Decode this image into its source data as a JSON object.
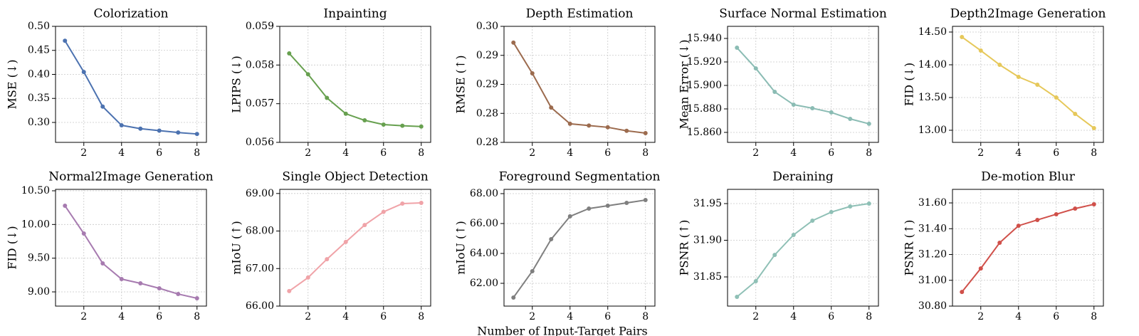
{
  "chart_data": [
    {
      "type": "line",
      "title": "Colorization",
      "ylabel": "MSE (↓)",
      "color": "#4c72b0",
      "x": [
        1,
        2,
        3,
        4,
        5,
        6,
        7,
        8
      ],
      "values": [
        0.47,
        0.405,
        0.333,
        0.294,
        0.287,
        0.283,
        0.279,
        0.276
      ],
      "xlim": [
        0.5,
        8.5
      ],
      "xticks": [
        2,
        4,
        6,
        8
      ],
      "ylim": [
        0.2585,
        0.5
      ],
      "yticks": [
        {
          "value": 0.3,
          "label": "0.30"
        },
        0.35,
        {
          "value": 0.4,
          "label": "0.40"
        },
        0.45,
        {
          "value": 0.5,
          "label": "0.50"
        }
      ],
      "grid": true
    },
    {
      "type": "line",
      "title": "Inpainting",
      "ylabel": "LPIPS (↓)",
      "color": "#67a04f",
      "x": [
        1,
        2,
        3,
        4,
        5,
        6,
        7,
        8
      ],
      "values": [
        0.0583,
        0.05776,
        0.05715,
        0.05674,
        0.05657,
        0.05646,
        0.05643,
        0.05641
      ],
      "xlim": [
        0.5,
        8.5
      ],
      "xticks": [
        2,
        4,
        6,
        8
      ],
      "ylim": [
        0.056,
        0.059
      ],
      "yticks": [
        0.056,
        0.057,
        0.058,
        0.059
      ],
      "grid": true
    },
    {
      "type": "line",
      "title": "Depth Estimation",
      "ylabel": "RMSE (↑)",
      "color": "#9c6b4e",
      "x": [
        1,
        2,
        3,
        4,
        5,
        6,
        7,
        8
      ],
      "values": [
        0.2972,
        0.2919,
        0.286,
        0.2832,
        0.2829,
        0.2826,
        0.282,
        0.2816
      ],
      "xlim": [
        0.5,
        8.5
      ],
      "xticks": [
        2,
        4,
        6,
        8
      ],
      "ylim": [
        0.28,
        0.3
      ],
      "yticks": [
        {
          "value": 0.3,
          "label": "0.30"
        },
        {
          "value": 0.295,
          "label": "0.29"
        },
        {
          "value": 0.29,
          "label": "0.29"
        },
        {
          "value": 0.285,
          "label": "0.28"
        },
        {
          "value": 0.28,
          "label": "0.28"
        }
      ],
      "grid": true
    },
    {
      "type": "line",
      "title": "Surface Normal Estimation",
      "ylabel": "Mean Error (↓)",
      "color": "#8bbcb4",
      "x": [
        1,
        2,
        3,
        4,
        5,
        6,
        7,
        8
      ],
      "values": [
        15.9321,
        15.9145,
        15.8945,
        15.8836,
        15.8806,
        15.877,
        15.8715,
        15.8673
      ],
      "xlim": [
        0.5,
        8.5
      ],
      "xticks": [
        2,
        4,
        6,
        8
      ],
      "ylim": [
        15.8515,
        15.9503
      ],
      "yticks": [
        {
          "value": 15.86,
          "label": "15.860"
        },
        {
          "value": 15.88,
          "label": "15.880"
        },
        {
          "value": 15.9,
          "label": "15.900"
        },
        {
          "value": 15.92,
          "label": "15.920"
        },
        {
          "value": 15.94,
          "label": "15.940"
        }
      ],
      "grid": true
    },
    {
      "type": "line",
      "title": "Depth2Image Generation",
      "ylabel": "FID (↓)",
      "color": "#e6c85a",
      "x": [
        1,
        2,
        3,
        4,
        5,
        6,
        7,
        8
      ],
      "values": [
        14.424,
        14.217,
        14.0,
        13.815,
        13.696,
        13.5,
        13.25,
        13.033
      ],
      "xlim": [
        0.5,
        8.5
      ],
      "xticks": [
        2,
        4,
        6,
        8
      ],
      "ylim": [
        12.815,
        14.587
      ],
      "yticks": [
        {
          "value": 13.0,
          "label": "13.00"
        },
        {
          "value": 13.5,
          "label": "13.50"
        },
        {
          "value": 14.0,
          "label": "14.00"
        },
        {
          "value": 14.5,
          "label": "14.50"
        }
      ],
      "grid": true
    },
    {
      "type": "line",
      "title": "Normal2Image Generation",
      "ylabel": "FID (↓)",
      "color": "#a77bb0",
      "x": [
        1,
        2,
        3,
        4,
        5,
        6,
        7,
        8
      ],
      "values": [
        10.278,
        9.866,
        9.423,
        9.19,
        9.127,
        9.053,
        8.968,
        8.905
      ],
      "xlim": [
        0.5,
        8.5
      ],
      "xticks": [
        2,
        4,
        6,
        8
      ],
      "ylim": [
        8.789,
        10.521
      ],
      "yticks": [
        {
          "value": 9.0,
          "label": "9.00"
        },
        {
          "value": 9.5,
          "label": "9.50"
        },
        {
          "value": 10.0,
          "label": "10.00"
        },
        {
          "value": 10.5,
          "label": "10.50"
        }
      ],
      "grid": true
    },
    {
      "type": "line",
      "title": "Single Object Detection",
      "ylabel": "mIoU (↑)",
      "color": "#f0a3a8",
      "x": [
        1,
        2,
        3,
        4,
        5,
        6,
        7,
        8
      ],
      "values": [
        66.4,
        66.76,
        67.25,
        67.71,
        68.16,
        68.51,
        68.73,
        68.75
      ],
      "xlim": [
        0.5,
        8.5
      ],
      "xticks": [
        2,
        4,
        6,
        8
      ],
      "ylim": [
        66.0,
        69.11
      ],
      "yticks": [
        {
          "value": 66,
          "label": "66.00"
        },
        {
          "value": 67,
          "label": "67.00"
        },
        {
          "value": 68,
          "label": "68.00"
        },
        {
          "value": 69,
          "label": "69.00"
        }
      ],
      "grid": true
    },
    {
      "type": "line",
      "title": "Foreground Segmentation",
      "ylabel": "mIoU (↑)",
      "color": "#7f7f7f",
      "x": [
        1,
        2,
        3,
        4,
        5,
        6,
        7,
        8
      ],
      "values": [
        61.05,
        62.81,
        64.95,
        66.48,
        67.0,
        67.19,
        67.38,
        67.57
      ],
      "xlim": [
        0.5,
        8.5
      ],
      "xticks": [
        2,
        4,
        6,
        8
      ],
      "ylim": [
        60.476,
        68.286
      ],
      "yticks": [
        {
          "value": 62,
          "label": "62.00"
        },
        {
          "value": 64,
          "label": "64.00"
        },
        {
          "value": 66,
          "label": "66.00"
        },
        {
          "value": 68,
          "label": "68.00"
        }
      ],
      "grid": true
    },
    {
      "type": "line",
      "title": "Deraining",
      "ylabel": "PSNR (↑)",
      "color": "#8fc0b6",
      "x": [
        1,
        2,
        3,
        4,
        5,
        6,
        7,
        8
      ],
      "values": [
        31.8228,
        31.8442,
        31.88,
        31.9073,
        31.9267,
        31.9384,
        31.9461,
        31.95
      ],
      "xlim": [
        0.5,
        8.5
      ],
      "xticks": [
        2,
        4,
        6,
        8
      ],
      "ylim": [
        31.8102,
        31.9694
      ],
      "yticks": [
        31.85,
        {
          "value": 31.9,
          "label": "31.90"
        },
        31.95
      ],
      "grid": true
    },
    {
      "type": "line",
      "title": "De-motion Blur",
      "ylabel": "PSNR (↑)",
      "color": "#d0504a",
      "x": [
        1,
        2,
        3,
        4,
        5,
        6,
        7,
        8
      ],
      "values": [
        30.91,
        31.092,
        31.291,
        31.423,
        31.468,
        31.512,
        31.556,
        31.589
      ],
      "xlim": [
        0.5,
        8.5
      ],
      "xticks": [
        2,
        4,
        6,
        8
      ],
      "ylim": [
        30.8,
        31.705
      ],
      "yticks": [
        {
          "value": 30.8,
          "label": "30.80"
        },
        {
          "value": 31.0,
          "label": "31.00"
        },
        {
          "value": 31.2,
          "label": "31.20"
        },
        {
          "value": 31.4,
          "label": "31.40"
        },
        {
          "value": 31.6,
          "label": "31.60"
        }
      ],
      "grid": true
    }
  ],
  "xlabel": "Number of Input-Target Pairs"
}
